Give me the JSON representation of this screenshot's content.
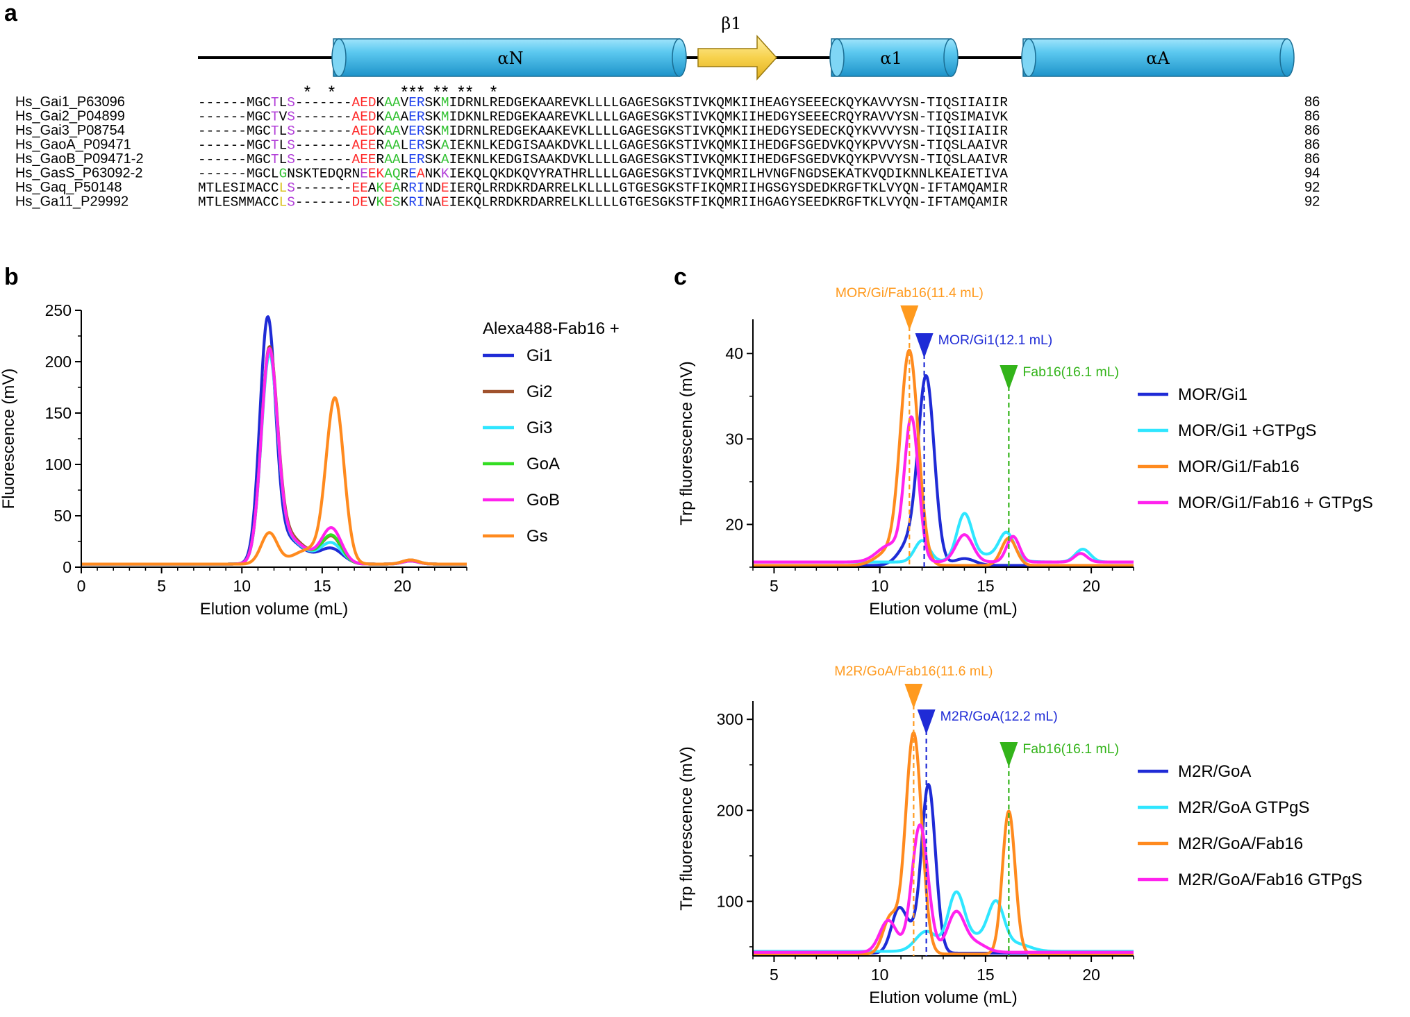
{
  "panel_labels": [
    "a",
    "b",
    "c"
  ],
  "alignment": {
    "elements": [
      {
        "type": "helix",
        "label": "αN"
      },
      {
        "type": "strand",
        "label": "β1"
      },
      {
        "type": "helix",
        "label": "α1"
      },
      {
        "type": "helix",
        "label": "αA"
      }
    ],
    "star_columns": [
      13,
      16,
      25,
      26,
      27,
      29,
      30,
      32,
      33,
      36
    ],
    "rows": [
      {
        "name": "Hs_Gai1_P63096",
        "seq": "------MGCTLS-------AEDKAAVERSKMIDRNLREDGEKAAREVKLLLLGAGESGKSTIVKQMKIIHEAGYSEEECKQYKAVVYSN-TIQSIIAIIR",
        "length": "86"
      },
      {
        "name": "Hs_Gai2_P04899",
        "seq": "------MGCTVS-------AEDKAAAERSKMIDKNLREDGEKAAREVKLLLLGAGESGKSTIVKQMKIIHEDGYSEEECRQYRAVVYSN-TIQSIMAIVK",
        "length": "86"
      },
      {
        "name": "Hs_Gai3_P08754",
        "seq": "------MGCTLS-------AEDKAAVERSKMIDRNLREDGEKAAKEVKLLLLGAGESGKSTIVKQMKIIHEDGYSEDECKQYKVVVYSN-TIQSIIAIIR",
        "length": "86"
      },
      {
        "name": "Hs_GaoA_P09471",
        "seq": "------MGCTLS-------AEERAALERSKAIEKNLKEDGISAAKDVKLLLLGAGESGKSTIVKQMKIIHEDGFSGEDVKQYKPVVYSN-TIQSLAAIVR",
        "length": "86"
      },
      {
        "name": "Hs_GaoB_P09471-2",
        "seq": "------MGCTLS-------AEERAALERSKAIEKNLKEDGISAAKDVKLLLLGAGESGKSTIVKQMKIIHEDGFSGEDVKQYKPVVYSN-TIQSLAAIVR",
        "length": "86"
      },
      {
        "name": "Hs_GasS_P63092-2",
        "seq": "------MGCLGNSKTEDQRNEEKAQREANKKIEKQLQKDKQVYRATHRLLLLGAGESGKSTIVKQMRILHVNGFNGDSEKATKVQDIKNNLKEAIETIVA",
        "length": "94"
      },
      {
        "name": "Hs_Gaq_P50148",
        "seq": "MTLESIMACCLS-------EEAKEARRINDEIERQLRRDKRDARRELKLLLLGTGESGKSTFIKQMRIIHGSGYSDEDKRGFTKLVYQN-IFTAMQAMIR",
        "length": "92"
      },
      {
        "name": "Hs_Ga11_P29992",
        "seq": "MTLESMMACCLS-------DEVKESKRINAEIEKQLRRDKRDARRELKLLLLGTGESGKSTFIKQMRIIHGAGYSEEDKRGFTKLVYQN-IFTAMQAMIR",
        "length": "92"
      }
    ],
    "colored_residues": [
      {
        "row": 0,
        "cols": [
          9,
          11
        ],
        "color": "#b23fd8"
      },
      {
        "row": 0,
        "cols": [
          19,
          20,
          21
        ],
        "color": "#ff2a2a"
      },
      {
        "row": 0,
        "cols": [
          23,
          24,
          30
        ],
        "color": "#33c233"
      },
      {
        "row": 0,
        "cols": [
          26,
          27
        ],
        "color": "#2244ee"
      },
      {
        "row": 1,
        "cols": [
          9,
          11
        ],
        "color": "#b23fd8"
      },
      {
        "row": 1,
        "cols": [
          19,
          20,
          21
        ],
        "color": "#ff2a2a"
      },
      {
        "row": 1,
        "cols": [
          23,
          24,
          30
        ],
        "color": "#33c233"
      },
      {
        "row": 1,
        "cols": [
          26,
          27
        ],
        "color": "#2244ee"
      },
      {
        "row": 2,
        "cols": [
          9,
          11
        ],
        "color": "#b23fd8"
      },
      {
        "row": 2,
        "cols": [
          19,
          20,
          21
        ],
        "color": "#ff2a2a"
      },
      {
        "row": 2,
        "cols": [
          23,
          24,
          30
        ],
        "color": "#33c233"
      },
      {
        "row": 2,
        "cols": [
          26,
          27
        ],
        "color": "#2244ee"
      },
      {
        "row": 3,
        "cols": [
          9,
          11
        ],
        "color": "#b23fd8"
      },
      {
        "row": 3,
        "cols": [
          19,
          20,
          21
        ],
        "color": "#ff2a2a"
      },
      {
        "row": 3,
        "cols": [
          23,
          24,
          30
        ],
        "color": "#33c233"
      },
      {
        "row": 3,
        "cols": [
          26,
          27
        ],
        "color": "#2244ee"
      },
      {
        "row": 4,
        "cols": [
          9,
          11
        ],
        "color": "#b23fd8"
      },
      {
        "row": 4,
        "cols": [
          19,
          20,
          21
        ],
        "color": "#ff2a2a"
      },
      {
        "row": 4,
        "cols": [
          23,
          24,
          30
        ],
        "color": "#33c233"
      },
      {
        "row": 4,
        "cols": [
          26,
          27
        ],
        "color": "#2244ee"
      },
      {
        "row": 5,
        "cols": [
          10
        ],
        "color": "#33c233"
      },
      {
        "row": 5,
        "cols": [
          20,
          30
        ],
        "color": "#b23fd8"
      },
      {
        "row": 5,
        "cols": [
          21,
          22,
          27
        ],
        "color": "#ff2a2a"
      },
      {
        "row": 5,
        "cols": [
          23,
          24,
          26
        ],
        "color": "#33c233"
      },
      {
        "row": 5,
        "cols": [
          26
        ],
        "color": "#2244ee"
      },
      {
        "row": 6,
        "cols": [
          10
        ],
        "color": "#d9c21c"
      },
      {
        "row": 6,
        "cols": [
          11
        ],
        "color": "#b23fd8"
      },
      {
        "row": 6,
        "cols": [
          19,
          20,
          23,
          30
        ],
        "color": "#ff2a2a"
      },
      {
        "row": 6,
        "cols": [
          22,
          24
        ],
        "color": "#33c233"
      },
      {
        "row": 6,
        "cols": [
          26,
          27
        ],
        "color": "#2244ee"
      },
      {
        "row": 7,
        "cols": [
          10
        ],
        "color": "#d9c21c"
      },
      {
        "row": 7,
        "cols": [
          11
        ],
        "color": "#b23fd8"
      },
      {
        "row": 7,
        "cols": [
          19,
          20,
          23,
          30
        ],
        "color": "#ff2a2a"
      },
      {
        "row": 7,
        "cols": [
          22,
          24
        ],
        "color": "#33c233"
      },
      {
        "row": 7,
        "cols": [
          26,
          27
        ],
        "color": "#2244ee"
      }
    ]
  },
  "chart_data": [
    {
      "id": "b",
      "type": "line",
      "title": "",
      "xlabel": "Elution volume (mL)",
      "ylabel": "Fluorescence (mV)",
      "xlim": [
        0,
        24
      ],
      "ylim": [
        0,
        250
      ],
      "xticks": [
        0,
        5,
        10,
        15,
        20
      ],
      "yticks": [
        0,
        50,
        100,
        150,
        200,
        250
      ],
      "legend_title": "Alexa488-Fab16 +",
      "series": [
        {
          "name": "Gi1",
          "color": "#1f2bd6",
          "baseline": 3,
          "peaks": [
            {
              "x": 11.6,
              "h": 228,
              "w": 0.48
            },
            {
              "x": 12.6,
              "h": 22,
              "w": 0.9
            },
            {
              "x": 15.6,
              "h": 13,
              "w": 0.7
            },
            {
              "x": 14.0,
              "h": 6,
              "w": 1.2
            },
            {
              "x": 20.5,
              "h": 3,
              "w": 0.5
            }
          ]
        },
        {
          "name": "Gi2",
          "color": "#a0522d",
          "baseline": 3,
          "peaks": [
            {
              "x": 11.7,
              "h": 195,
              "w": 0.5
            },
            {
              "x": 12.6,
              "h": 25,
              "w": 0.9
            },
            {
              "x": 15.6,
              "h": 24,
              "w": 0.6
            },
            {
              "x": 14.0,
              "h": 8,
              "w": 1.2
            },
            {
              "x": 20.5,
              "h": 4,
              "w": 0.5
            }
          ]
        },
        {
          "name": "Gi3",
          "color": "#2fe6ff",
          "baseline": 3,
          "peaks": [
            {
              "x": 11.7,
              "h": 190,
              "w": 0.5
            },
            {
              "x": 12.6,
              "h": 22,
              "w": 0.9
            },
            {
              "x": 15.6,
              "h": 18,
              "w": 0.65
            },
            {
              "x": 14.0,
              "h": 7,
              "w": 1.2
            },
            {
              "x": 20.5,
              "h": 3,
              "w": 0.5
            }
          ]
        },
        {
          "name": "GoA",
          "color": "#33dd22",
          "baseline": 3,
          "peaks": [
            {
              "x": 11.7,
              "h": 195,
              "w": 0.5
            },
            {
              "x": 12.6,
              "h": 22,
              "w": 0.9
            },
            {
              "x": 15.6,
              "h": 25,
              "w": 0.6
            },
            {
              "x": 14.0,
              "h": 8,
              "w": 1.2
            },
            {
              "x": 20.5,
              "h": 3,
              "w": 0.5
            }
          ]
        },
        {
          "name": "GoB",
          "color": "#ff22ee",
          "baseline": 3,
          "peaks": [
            {
              "x": 11.7,
              "h": 195,
              "w": 0.5
            },
            {
              "x": 12.6,
              "h": 22,
              "w": 0.9
            },
            {
              "x": 15.6,
              "h": 32,
              "w": 0.6
            },
            {
              "x": 14.0,
              "h": 8,
              "w": 1.2
            },
            {
              "x": 20.5,
              "h": 3,
              "w": 0.5
            }
          ]
        },
        {
          "name": "Gs",
          "color": "#ff8a1e",
          "baseline": 3,
          "peaks": [
            {
              "x": 11.7,
              "h": 30,
              "w": 0.5
            },
            {
              "x": 15.8,
              "h": 158,
              "w": 0.55
            },
            {
              "x": 14.2,
              "h": 14,
              "w": 1.0
            },
            {
              "x": 20.5,
              "h": 4,
              "w": 0.5
            }
          ]
        }
      ]
    },
    {
      "id": "c-top",
      "type": "line",
      "title": "",
      "xlabel": "Elution volume (mL)",
      "ylabel": "Trp fluorescence (mV)",
      "xlim": [
        4,
        22
      ],
      "ylim": [
        15,
        44
      ],
      "xticks": [
        5,
        10,
        15,
        20
      ],
      "yticks": [
        20,
        30,
        40
      ],
      "markers": [
        {
          "label": "MOR/Gi/Fab16(11.4 mL)",
          "x": 11.4,
          "color": "#ff9a1e"
        },
        {
          "label": "MOR/Gi1(12.1 mL)",
          "x": 12.1,
          "color": "#1f2bd6"
        },
        {
          "label": "Fab16(16.1 mL)",
          "x": 16.1,
          "color": "#33b41a"
        }
      ],
      "series": [
        {
          "name": "MOR/Gi1",
          "color": "#1f2bd6",
          "baseline": 15.2,
          "peaks": [
            {
              "x": 12.2,
              "h": 21.5,
              "w": 0.38
            },
            {
              "x": 11.4,
              "h": 2.5,
              "w": 0.5
            },
            {
              "x": 14.0,
              "h": 0.8,
              "w": 0.5
            }
          ]
        },
        {
          "name": "MOR/Gi1 +GTPgS",
          "color": "#2fe6ff",
          "baseline": 15.6,
          "peaks": [
            {
              "x": 12.0,
              "h": 2.5,
              "w": 0.35
            },
            {
              "x": 14.0,
              "h": 5.2,
              "w": 0.35
            },
            {
              "x": 16.0,
              "h": 3.0,
              "w": 0.35
            },
            {
              "x": 19.6,
              "h": 1.5,
              "w": 0.35
            },
            {
              "x": 15.0,
              "h": 0.8,
              "w": 1.0
            }
          ]
        },
        {
          "name": "MOR/Gi1/Fab16",
          "color": "#ff8a1e",
          "baseline": 15.2,
          "peaks": [
            {
              "x": 11.4,
              "h": 24.8,
              "w": 0.42
            },
            {
              "x": 10.4,
              "h": 1.5,
              "w": 0.6
            },
            {
              "x": 16.1,
              "h": 3.2,
              "w": 0.35
            }
          ]
        },
        {
          "name": "MOR/Gi1/Fab16 + GTPgS",
          "color": "#ff22ee",
          "baseline": 15.6,
          "peaks": [
            {
              "x": 11.5,
              "h": 16.5,
              "w": 0.33
            },
            {
              "x": 10.5,
              "h": 2.0,
              "w": 0.6
            },
            {
              "x": 14.0,
              "h": 3.2,
              "w": 0.4
            },
            {
              "x": 16.3,
              "h": 3.0,
              "w": 0.3
            },
            {
              "x": 19.5,
              "h": 1.0,
              "w": 0.3
            }
          ]
        }
      ]
    },
    {
      "id": "c-bottom",
      "type": "line",
      "title": "",
      "xlabel": "Elution volume (mL)",
      "ylabel": "Trp fluorescence (mV)",
      "xlim": [
        4,
        22
      ],
      "ylim": [
        40,
        320
      ],
      "xticks": [
        5,
        10,
        15,
        20
      ],
      "yticks": [
        100,
        200,
        300
      ],
      "markers": [
        {
          "label": "M2R/GoA/Fab16(11.6 mL)",
          "x": 11.6,
          "color": "#ff9a1e"
        },
        {
          "label": "M2R/GoA(12.2 mL)",
          "x": 12.2,
          "color": "#1f2bd6"
        },
        {
          "label": "Fab16(16.1 mL)",
          "x": 16.1,
          "color": "#33b41a"
        }
      ],
      "series": [
        {
          "name": "M2R/GoA",
          "color": "#1f2bd6",
          "baseline": 43,
          "peaks": [
            {
              "x": 12.3,
              "h": 185,
              "w": 0.33
            },
            {
              "x": 10.9,
              "h": 48,
              "w": 0.35
            },
            {
              "x": 11.5,
              "h": 15,
              "w": 0.3
            }
          ]
        },
        {
          "name": "M2R/GoA GTPgS",
          "color": "#2fe6ff",
          "baseline": 45,
          "peaks": [
            {
              "x": 12.2,
              "h": 22,
              "w": 0.5
            },
            {
              "x": 13.6,
              "h": 60,
              "w": 0.38
            },
            {
              "x": 15.5,
              "h": 50,
              "w": 0.38
            },
            {
              "x": 14.5,
              "h": 15,
              "w": 0.6
            },
            {
              "x": 16.5,
              "h": 8,
              "w": 0.6
            }
          ]
        },
        {
          "name": "M2R/GoA/Fab16",
          "color": "#ff8a1e",
          "baseline": 42,
          "peaks": [
            {
              "x": 11.6,
              "h": 243,
              "w": 0.38
            },
            {
              "x": 10.5,
              "h": 40,
              "w": 0.35
            },
            {
              "x": 16.1,
              "h": 157,
              "w": 0.3
            }
          ]
        },
        {
          "name": "M2R/GoA/Fab16 GTPgS",
          "color": "#ff22ee",
          "baseline": 44,
          "peaks": [
            {
              "x": 11.9,
              "h": 140,
              "w": 0.38
            },
            {
              "x": 10.4,
              "h": 35,
              "w": 0.4
            },
            {
              "x": 13.6,
              "h": 43,
              "w": 0.4
            },
            {
              "x": 14.5,
              "h": 10,
              "w": 0.5
            }
          ]
        }
      ]
    }
  ]
}
